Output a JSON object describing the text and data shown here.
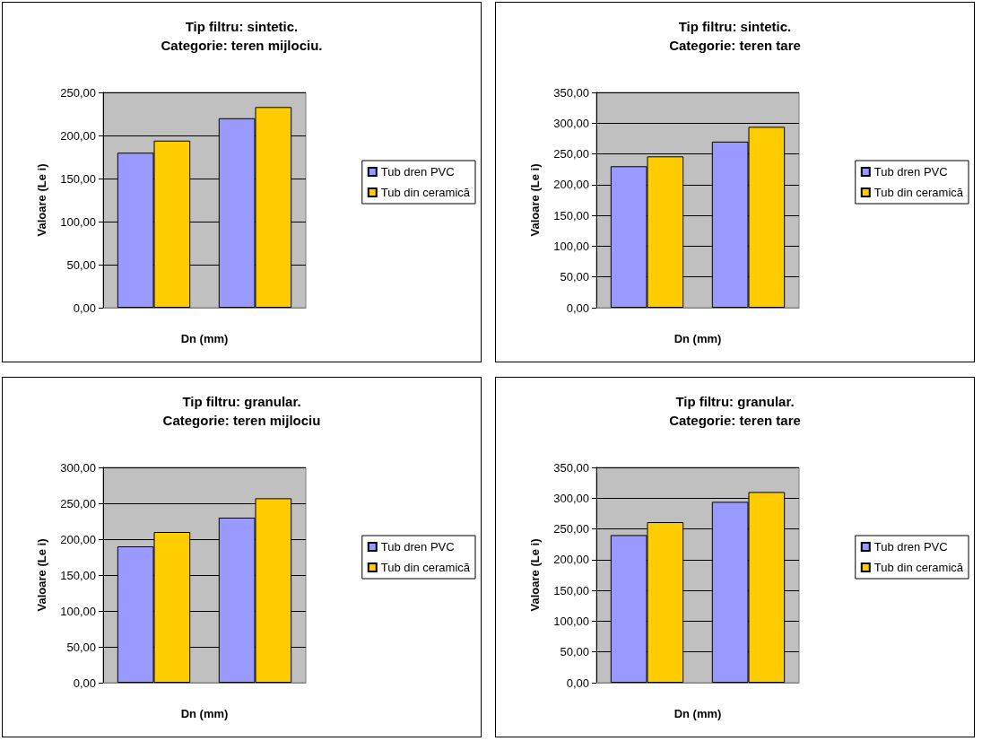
{
  "chart_data": [
    {
      "type": "bar",
      "title": "Tip filtru: sintetic.",
      "subtitle": "Categorie: teren mijlociu.",
      "xlabel": "Dn (mm)",
      "ylabel": "Valoare (Le i)",
      "categories": [
        null,
        null
      ],
      "series": [
        {
          "name": "Tub dren PVC",
          "color": "#9999ff",
          "values": [
            180,
            220
          ]
        },
        {
          "name": "Tub din ceramică",
          "color": "#ffcc00",
          "values": [
            194,
            233
          ]
        }
      ],
      "ylim": [
        0,
        250
      ],
      "yticks": [
        {
          "value": 0,
          "label": "0,00"
        },
        {
          "value": 50,
          "label": "50,00"
        },
        {
          "value": 100,
          "label": "100,00"
        },
        {
          "value": 150,
          "label": "150,00"
        },
        {
          "value": 200,
          "label": "200,00"
        },
        {
          "value": 250,
          "label": "250,00"
        }
      ],
      "grid": "y",
      "legend": "right"
    },
    {
      "type": "bar",
      "title": "Tip filtru: sintetic.",
      "subtitle": "Categorie: teren tare",
      "xlabel": "Dn (mm)",
      "ylabel": "Valoare (Le i)",
      "categories": [
        null,
        null
      ],
      "series": [
        {
          "name": "Tub dren PVC",
          "color": "#9999ff",
          "values": [
            230,
            270
          ]
        },
        {
          "name": "Tub din ceramică",
          "color": "#ffcc00",
          "values": [
            246,
            294
          ]
        }
      ],
      "ylim": [
        0,
        350
      ],
      "yticks": [
        {
          "value": 0,
          "label": "0,00"
        },
        {
          "value": 50,
          "label": "50,00"
        },
        {
          "value": 100,
          "label": "100,00"
        },
        {
          "value": 150,
          "label": "150,00"
        },
        {
          "value": 200,
          "label": "200,00"
        },
        {
          "value": 250,
          "label": "250,00"
        },
        {
          "value": 300,
          "label": "300,00"
        },
        {
          "value": 350,
          "label": "350,00"
        }
      ],
      "grid": "y",
      "legend": "right"
    },
    {
      "type": "bar",
      "title": "Tip filtru: granular.",
      "subtitle": "Categorie: teren mijlociu",
      "xlabel": "Dn (mm)",
      "ylabel": "Valoare (Le i)",
      "categories": [
        null,
        null
      ],
      "series": [
        {
          "name": "Tub dren PVC",
          "color": "#9999ff",
          "values": [
            190,
            230
          ]
        },
        {
          "name": "Tub din ceramică",
          "color": "#ffcc00",
          "values": [
            210,
            257
          ]
        }
      ],
      "ylim": [
        0,
        300
      ],
      "yticks": [
        {
          "value": 0,
          "label": "0,00"
        },
        {
          "value": 50,
          "label": "50,00"
        },
        {
          "value": 100,
          "label": "100,00"
        },
        {
          "value": 150,
          "label": "150,00"
        },
        {
          "value": 200,
          "label": "200,00"
        },
        {
          "value": 250,
          "label": "250,00"
        },
        {
          "value": 300,
          "label": "300,00"
        }
      ],
      "grid": "y",
      "legend": "right"
    },
    {
      "type": "bar",
      "title": "Tip filtru: granular.",
      "subtitle": "Categorie: teren tare",
      "xlabel": "Dn (mm)",
      "ylabel": "Valoare (Le i)",
      "categories": [
        null,
        null
      ],
      "series": [
        {
          "name": "Tub dren PVC",
          "color": "#9999ff",
          "values": [
            240,
            294
          ]
        },
        {
          "name": "Tub din ceramică",
          "color": "#ffcc00",
          "values": [
            261,
            310
          ]
        }
      ],
      "ylim": [
        0,
        350
      ],
      "yticks": [
        {
          "value": 0,
          "label": "0,00"
        },
        {
          "value": 50,
          "label": "50,00"
        },
        {
          "value": 100,
          "label": "100,00"
        },
        {
          "value": 150,
          "label": "150,00"
        },
        {
          "value": 200,
          "label": "200,00"
        },
        {
          "value": 250,
          "label": "250,00"
        },
        {
          "value": 300,
          "label": "300,00"
        },
        {
          "value": 350,
          "label": "350,00"
        }
      ],
      "grid": "y",
      "legend": "right"
    }
  ]
}
